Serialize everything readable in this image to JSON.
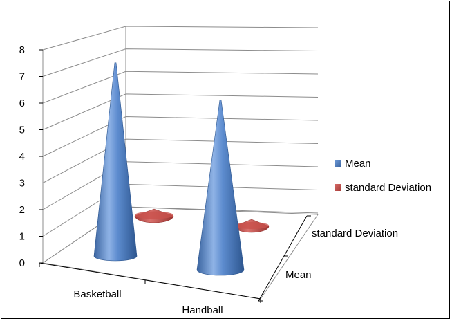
{
  "chart_data": {
    "type": "bar",
    "style": "3d-cone",
    "categories": [
      "Basketball",
      "Handball"
    ],
    "depth_categories": [
      "Mean",
      "standard Deviation"
    ],
    "series": [
      {
        "name": "Mean",
        "values": [
          7.4,
          6.5
        ],
        "color": "#4f81bd"
      },
      {
        "name": "standard Deviation",
        "values": [
          0.2,
          0.2
        ],
        "color": "#c0504d"
      }
    ],
    "y_ticks": [
      "0",
      "1",
      "2",
      "3",
      "4",
      "5",
      "6",
      "7",
      "8"
    ],
    "ylim": [
      0,
      8
    ],
    "grid": true,
    "legend_position": "right",
    "title": "",
    "xlabel": "",
    "ylabel": ""
  }
}
